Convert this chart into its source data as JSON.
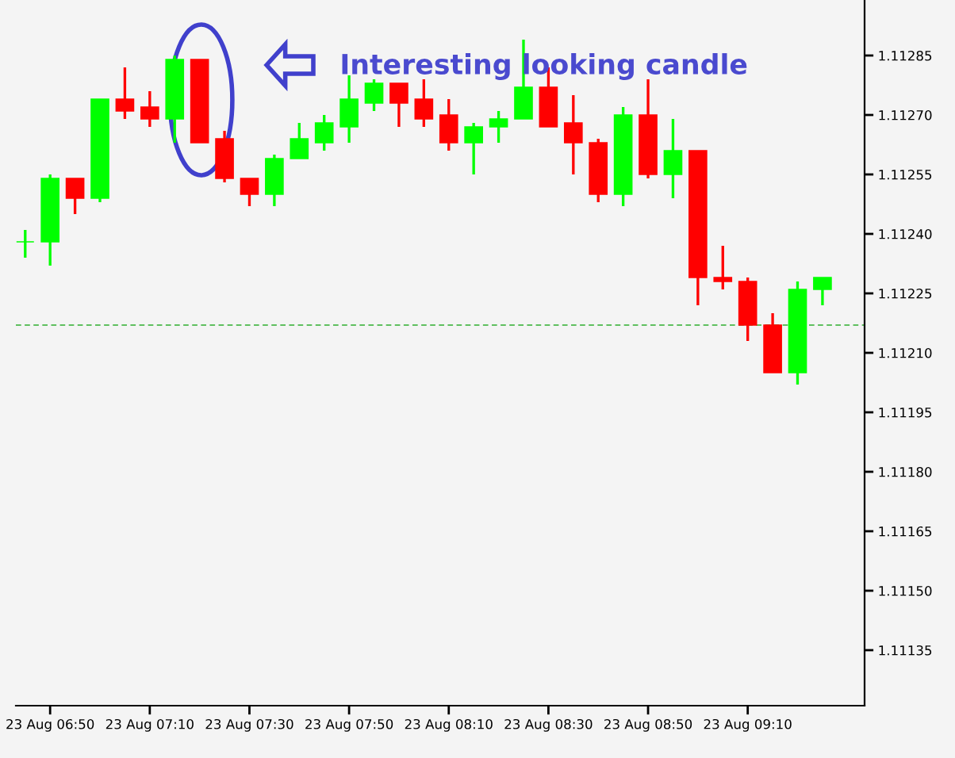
{
  "chart_data": {
    "type": "candlestick",
    "categories": [
      null,
      "23 Aug 06:50",
      null,
      null,
      null,
      "23 Aug 07:10",
      null,
      null,
      null,
      "23 Aug 07:30",
      null,
      null,
      null,
      "23 Aug 07:50",
      null,
      null,
      null,
      "23 Aug 08:10",
      null,
      null,
      null,
      "23 Aug 08:30",
      null,
      null,
      null,
      "23 Aug 08:50",
      null,
      null,
      null,
      "23 Aug 09:10",
      null,
      null,
      null
    ],
    "ohlc": [
      [
        1.11238,
        1.11241,
        1.11234,
        1.11238
      ],
      [
        1.11238,
        1.11255,
        1.11232,
        1.11254
      ],
      [
        1.11254,
        1.11254,
        1.11245,
        1.11249
      ],
      [
        1.11249,
        1.11274,
        1.11248,
        1.11274
      ],
      [
        1.11274,
        1.11282,
        1.11269,
        1.11271
      ],
      [
        1.11272,
        1.11276,
        1.11267,
        1.11269
      ],
      [
        1.11269,
        1.11285,
        1.11263,
        1.11284
      ],
      [
        1.11284,
        1.11284,
        1.11263,
        1.11263
      ],
      [
        1.11264,
        1.11266,
        1.11253,
        1.11254
      ],
      [
        1.11254,
        1.11254,
        1.11247,
        1.1125
      ],
      [
        1.1125,
        1.1126,
        1.11247,
        1.11259
      ],
      [
        1.11259,
        1.11268,
        1.11259,
        1.11264
      ],
      [
        1.11263,
        1.1127,
        1.11261,
        1.11268
      ],
      [
        1.11267,
        1.1128,
        1.11263,
        1.11274
      ],
      [
        1.11273,
        1.11279,
        1.11271,
        1.11278
      ],
      [
        1.11278,
        1.11278,
        1.11267,
        1.11273
      ],
      [
        1.11274,
        1.11279,
        1.11267,
        1.11269
      ],
      [
        1.1127,
        1.11274,
        1.11261,
        1.11263
      ],
      [
        1.11263,
        1.11268,
        1.11255,
        1.11267
      ],
      [
        1.11267,
        1.11271,
        1.11263,
        1.11269
      ],
      [
        1.11269,
        1.11289,
        1.11269,
        1.11277
      ],
      [
        1.11277,
        1.11282,
        1.11267,
        1.11267
      ],
      [
        1.11268,
        1.11275,
        1.11255,
        1.11263
      ],
      [
        1.11263,
        1.11264,
        1.11248,
        1.1125
      ],
      [
        1.1125,
        1.11272,
        1.11247,
        1.1127
      ],
      [
        1.1127,
        1.11279,
        1.11254,
        1.11255
      ],
      [
        1.11255,
        1.11269,
        1.11249,
        1.11261
      ],
      [
        1.11261,
        1.11261,
        1.11222,
        1.11229
      ],
      [
        1.11229,
        1.11237,
        1.11226,
        1.11228
      ],
      [
        1.11228,
        1.11229,
        1.11213,
        1.11217
      ],
      [
        1.11217,
        1.1122,
        1.11205,
        1.11205
      ],
      [
        1.11205,
        1.11228,
        1.11202,
        1.11226
      ],
      [
        1.11226,
        1.11229,
        1.11222,
        1.11229
      ]
    ],
    "colors": [
      "#00ff00",
      "#00ff00",
      "#ff0000",
      "#00ff00",
      "#ff0000",
      "#ff0000",
      "#00ff00",
      "#ff0000",
      "#ff0000",
      "#ff0000",
      "#00ff00",
      "#00ff00",
      "#00ff00",
      "#00ff00",
      "#00ff00",
      "#ff0000",
      "#ff0000",
      "#ff0000",
      "#00ff00",
      "#00ff00",
      "#00ff00",
      "#ff0000",
      "#ff0000",
      "#ff0000",
      "#00ff00",
      "#ff0000",
      "#00ff00",
      "#ff0000",
      "#ff0000",
      "#ff0000",
      "#ff0000",
      "#00ff00",
      "#00ff00"
    ],
    "ylim": [
      1.11121,
      1.11299
    ],
    "yticks": [
      {
        "value": 1.11135,
        "label": "1.11135"
      },
      {
        "value": 1.1115,
        "label": "1.11150"
      },
      {
        "value": 1.11165,
        "label": "1.11165"
      },
      {
        "value": 1.1118,
        "label": "1.11180"
      },
      {
        "value": 1.11195,
        "label": "1.11195"
      },
      {
        "value": 1.1121,
        "label": "1.11210"
      },
      {
        "value": 1.11225,
        "label": "1.11225"
      },
      {
        "value": 1.1124,
        "label": "1.11240"
      },
      {
        "value": 1.11255,
        "label": "1.11255"
      },
      {
        "value": 1.1127,
        "label": "1.11270"
      },
      {
        "value": 1.11285,
        "label": "1.11285"
      }
    ],
    "ref_lines": [
      {
        "axis": "y",
        "value": 1.11217,
        "color": "#5fbf5f",
        "line_style": "dashed"
      }
    ],
    "annotations": [
      "Interesting looking candle"
    ],
    "grid": false
  }
}
